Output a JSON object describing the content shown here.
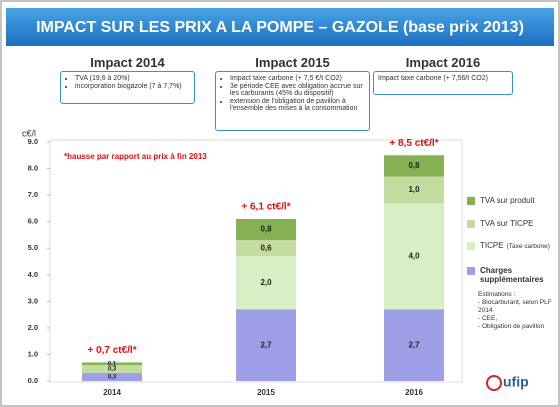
{
  "chart_data": {
    "type": "stacked_bar",
    "title": "IMPACT SUR LES PRIX A LA POMPE – GAZOLE (base prix 2013)",
    "panels": [
      {
        "heading": "Impact 2014",
        "items": [
          "TVA (19,6 à 20%)",
          "incorporation biogazole (7 à 7,7%)"
        ]
      },
      {
        "heading": "Impact 2015",
        "items": [
          "Impact taxe carbone (+ 7,5 €/t CO2)",
          "3e période CEE avec obligation accrue sur les carburants (45% du dispositif)",
          "extension de l'obligation de pavillon à l'ensemble des mises à la consommation"
        ]
      },
      {
        "heading": "Impact 2016",
        "items": [
          "Impact taxe carbone (+ 7,56/t CO2)"
        ]
      }
    ],
    "y_label": "c€/l",
    "note": "*hausse par rapport au prix à fin 2013",
    "categories": [
      "2014",
      "2015",
      "2016"
    ],
    "series": [
      {
        "name": "Charges supplémentaires",
        "color": "#9f9fe8",
        "values": [
          0.3,
          2.7,
          2.7
        ],
        "value_labels": [
          "0,3",
          "2,7",
          "2,7"
        ]
      },
      {
        "name": "TICPE",
        "color": "#d6efc4",
        "values": [
          null,
          2.0,
          4.0
        ],
        "value_labels": [
          null,
          "2,0",
          "4,0"
        ]
      },
      {
        "name": "TVA sur TICPE",
        "color": "#c4dca0",
        "values": [
          0.3,
          0.6,
          1.0
        ],
        "value_labels": [
          "0,3",
          "0,6",
          "1,0"
        ]
      },
      {
        "name": "TVA sur produit",
        "color": "#86b152",
        "values": [
          0.1,
          0.8,
          0.8
        ],
        "value_labels": [
          "0,1",
          "0,8",
          "0,8"
        ]
      }
    ],
    "total_labels": [
      "+ 0,7 ct€/l*",
      "+ 6,1 ct€/l*",
      "+ 8,5 ct€/l*"
    ],
    "legend_note": "(Taxe carbone)",
    "estimations": [
      "Estimations :",
      "- Biocarburant, selon PLF 2014",
      "- CEE,",
      "- Obligation de pavillon"
    ],
    "logo": "ufip",
    "ylim": [
      0,
      9
    ],
    "yticks": [
      {
        "value": 0,
        "label": "0.0"
      },
      {
        "value": 1,
        "label": "1.0"
      },
      {
        "value": 2,
        "label": "2.0"
      },
      {
        "value": 3,
        "label": "3.0"
      },
      {
        "value": 4,
        "label": "4.0"
      },
      {
        "value": 5,
        "label": "5.0"
      },
      {
        "value": 6,
        "label": "6.0"
      },
      {
        "value": 7,
        "label": "7.0"
      },
      {
        "value": 8,
        "label": "8.0"
      },
      {
        "value": 9,
        "label": "9.0"
      }
    ],
    "grid": false
  }
}
